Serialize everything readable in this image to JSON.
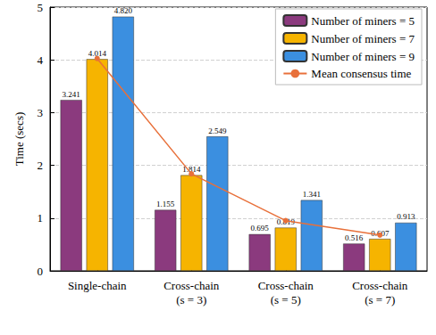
{
  "chart_data": {
    "type": "bar",
    "y_label": "Time (secs)",
    "categories": [
      "Single-chain",
      "Cross-chain\n(s = 3)",
      "Cross-chain\n(s = 5)",
      "Cross-chain\n(s = 7)"
    ],
    "series": [
      {
        "name": "Number of miners = 5",
        "color": "#8b3a7e",
        "values": [
          3.241,
          1.155,
          0.695,
          0.516
        ],
        "value_labels": [
          "3.241",
          "1.155",
          "0.695",
          "0.516"
        ]
      },
      {
        "name": "Number of miners = 7",
        "color": "#f6b400",
        "values": [
          4.014,
          1.814,
          0.819,
          0.607
        ],
        "value_labels": [
          "4.014",
          "1.814",
          "0.819",
          "0.607"
        ]
      },
      {
        "name": "Number of miners = 9",
        "color": "#3b8fe0",
        "values": [
          4.82,
          2.549,
          1.341,
          0.913
        ],
        "value_labels": [
          "4.820",
          "2.549",
          "1.341",
          "0.913"
        ]
      },
      {
        "name": "Mean consensus time",
        "type": "line",
        "color": "#e8703a",
        "marker": "circle",
        "values": [
          4.025,
          1.839,
          0.952,
          0.679
        ]
      }
    ],
    "ylim": [
      0,
      5
    ],
    "yticks": [
      0,
      1,
      2,
      3,
      4,
      5
    ],
    "grid": true,
    "legend": "upper right",
    "data_labels": true
  }
}
